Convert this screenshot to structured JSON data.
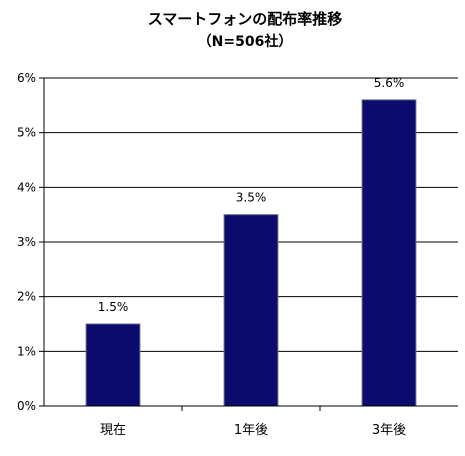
{
  "chart_data": {
    "type": "bar",
    "title": "スマートフォンの配布率推移",
    "subtitle": "（N=506社）",
    "categories": [
      "現在",
      "1年後",
      "3年後"
    ],
    "values": [
      1.5,
      3.5,
      5.6
    ],
    "data_labels": [
      "1.5%",
      "3.5%",
      "5.6%"
    ],
    "y_ticks": [
      0,
      1,
      2,
      3,
      4,
      5,
      6
    ],
    "y_tick_labels": [
      "0%",
      "1%",
      "2%",
      "3%",
      "4%",
      "5%",
      "6%"
    ],
    "ylim": [
      0,
      6
    ],
    "grid": true,
    "legend": "none",
    "colors": {
      "bar": "#0b0b6e",
      "bar_edge": "#6a6a8c",
      "grid": "#000000",
      "axis": "#000000"
    }
  }
}
